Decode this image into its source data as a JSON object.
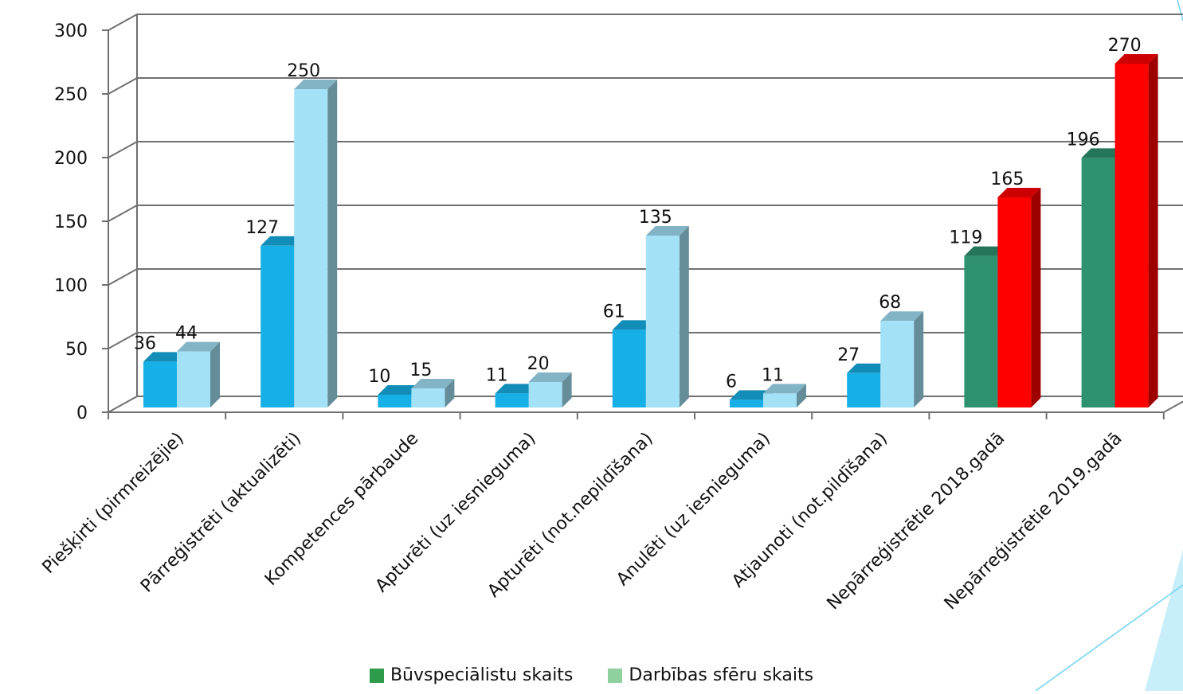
{
  "chart_data": {
    "type": "bar",
    "title": "",
    "xlabel": "",
    "ylabel": "",
    "ylim": [
      0,
      300
    ],
    "yticks": [
      "0",
      "50",
      "100",
      "150",
      "200",
      "250",
      "300"
    ],
    "grid": true,
    "categories": [
      "Piešķirti (pirmreizējie)",
      "Pārreģistrēti (aktualizēti)",
      "Kompetences pārbaude",
      "Apturēti (uz iesnieguma)",
      "Apturēti (not.nepildīšana)",
      "Anulēti (uz iesnieguma)",
      "Atjaunoti (not.pildīšana)",
      "Nepārreģistrētie 2018.gadā",
      "Nepārreģistrētie 2019.gadā"
    ],
    "series": [
      {
        "name": "Būvspeciālistu skaits",
        "values": [
          36,
          127,
          10,
          11,
          61,
          6,
          27,
          119,
          196
        ]
      },
      {
        "name": "Darbības sfēru skaits",
        "values": [
          44,
          250,
          15,
          20,
          135,
          11,
          68,
          165,
          270
        ]
      }
    ],
    "data_labels": [
      [
        "36",
        "127",
        "10",
        "11",
        "61",
        "6",
        "27",
        "119",
        "196"
      ],
      [
        "44",
        "250",
        "15",
        "20",
        "135",
        "11",
        "68",
        "165",
        "270"
      ]
    ],
    "colors": {
      "series1": "#17b0e6",
      "series2": "#a3e1f7",
      "series1_highlight": "#2e9270",
      "series2_highlight": "#ff0000",
      "legend_series1": "#2e9b4a",
      "legend_series2": "#8fd19e",
      "grid": "#707070",
      "decor_line": "#6fd3f0",
      "decor_fill": "#c8eef9"
    },
    "legend": {
      "position": "bottom",
      "items": [
        {
          "label": "Būvspeciālistu skaits"
        },
        {
          "label": "Darbības sfēru skaits"
        }
      ]
    }
  }
}
